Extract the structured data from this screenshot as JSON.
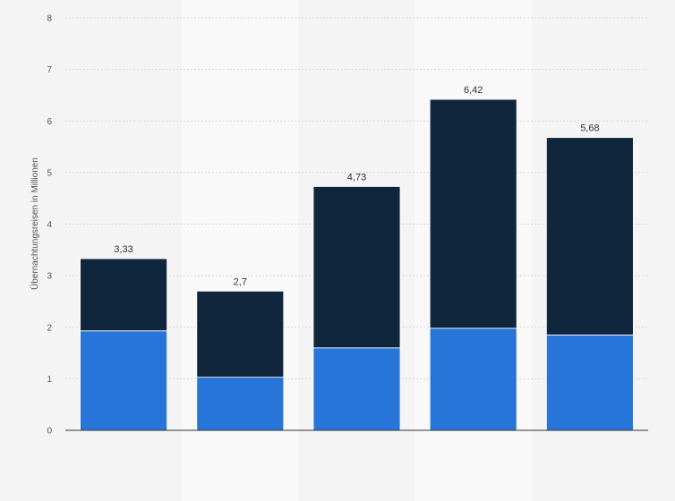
{
  "chart_data": {
    "type": "bar",
    "stacked": true,
    "categories": [
      "",
      "",
      "",
      "",
      ""
    ],
    "series": [
      {
        "values": [
          1.93,
          1.03,
          1.6,
          1.98,
          1.85
        ]
      },
      {
        "values": [
          1.4,
          1.67,
          3.13,
          4.44,
          3.83
        ]
      }
    ],
    "totals": [
      3.33,
      2.7,
      4.73,
      6.42,
      5.68
    ],
    "total_labels": [
      "3,33",
      "2,7",
      "4,73",
      "6,42",
      "5,68"
    ],
    "ylabel": "Übernachtungsreisen in Millionen",
    "ylim": [
      0,
      8
    ],
    "yticks": [
      0,
      1,
      2,
      3,
      4,
      5,
      6,
      7,
      8
    ],
    "grid": true,
    "colors": {
      "series": [
        "#2875da",
        "#10263d"
      ],
      "background": "#f4f4f4",
      "band": "#f9f9f9",
      "grid": "#d6d6d6"
    }
  }
}
